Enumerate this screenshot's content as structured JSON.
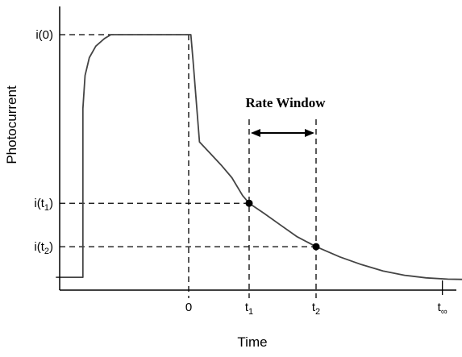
{
  "chart_data": {
    "type": "line",
    "xlabel": "Time",
    "ylabel": "Photocurrent",
    "annotation": "Rate Window",
    "x_ticks": [
      {
        "base": "0",
        "sub": "",
        "x": 0
      },
      {
        "base": "t",
        "sub": "1",
        "x": 0.56
      },
      {
        "base": "t",
        "sub": "2",
        "x": 1.18
      },
      {
        "base": "t",
        "sub": "∞",
        "x": 2.35
      }
    ],
    "y_ticks": [
      {
        "label": "i(0)",
        "base": "",
        "sub": "",
        "y": 1.0
      },
      {
        "label": "",
        "base": "i(t",
        "sub": "1",
        "y": 0.34
      },
      {
        "label": "",
        "base": "i(t",
        "sub": "2",
        "y": 0.17
      }
    ],
    "marked_points": [
      {
        "name": "t1-point",
        "x": 0.56,
        "y": 0.34
      },
      {
        "name": "t2-point",
        "x": 1.18,
        "y": 0.17
      }
    ],
    "series": [
      {
        "values": [
          [
            -1.23,
            0.05
          ],
          [
            -0.98,
            0.05
          ],
          [
            -0.98,
            0.71
          ],
          [
            -0.96,
            0.84
          ],
          [
            -0.92,
            0.91
          ],
          [
            -0.86,
            0.955
          ],
          [
            -0.78,
            0.985
          ],
          [
            -0.72,
            1.0
          ],
          [
            0.02,
            1.0
          ],
          [
            0.04,
            0.9
          ],
          [
            0.1,
            0.58
          ],
          [
            0.2,
            0.535
          ],
          [
            0.3,
            0.49
          ],
          [
            0.4,
            0.44
          ],
          [
            0.5,
            0.37
          ],
          [
            0.56,
            0.34
          ],
          [
            0.7,
            0.3
          ],
          [
            0.85,
            0.255
          ],
          [
            1.0,
            0.21
          ],
          [
            1.18,
            0.17
          ],
          [
            1.4,
            0.13
          ],
          [
            1.6,
            0.1
          ],
          [
            1.8,
            0.075
          ],
          [
            2.0,
            0.058
          ],
          [
            2.2,
            0.048
          ],
          [
            2.4,
            0.043
          ],
          [
            2.55,
            0.042
          ]
        ]
      }
    ],
    "xlim": [
      -1.23,
      2.6
    ],
    "ylim": [
      0,
      1.1
    ],
    "grid": false
  }
}
